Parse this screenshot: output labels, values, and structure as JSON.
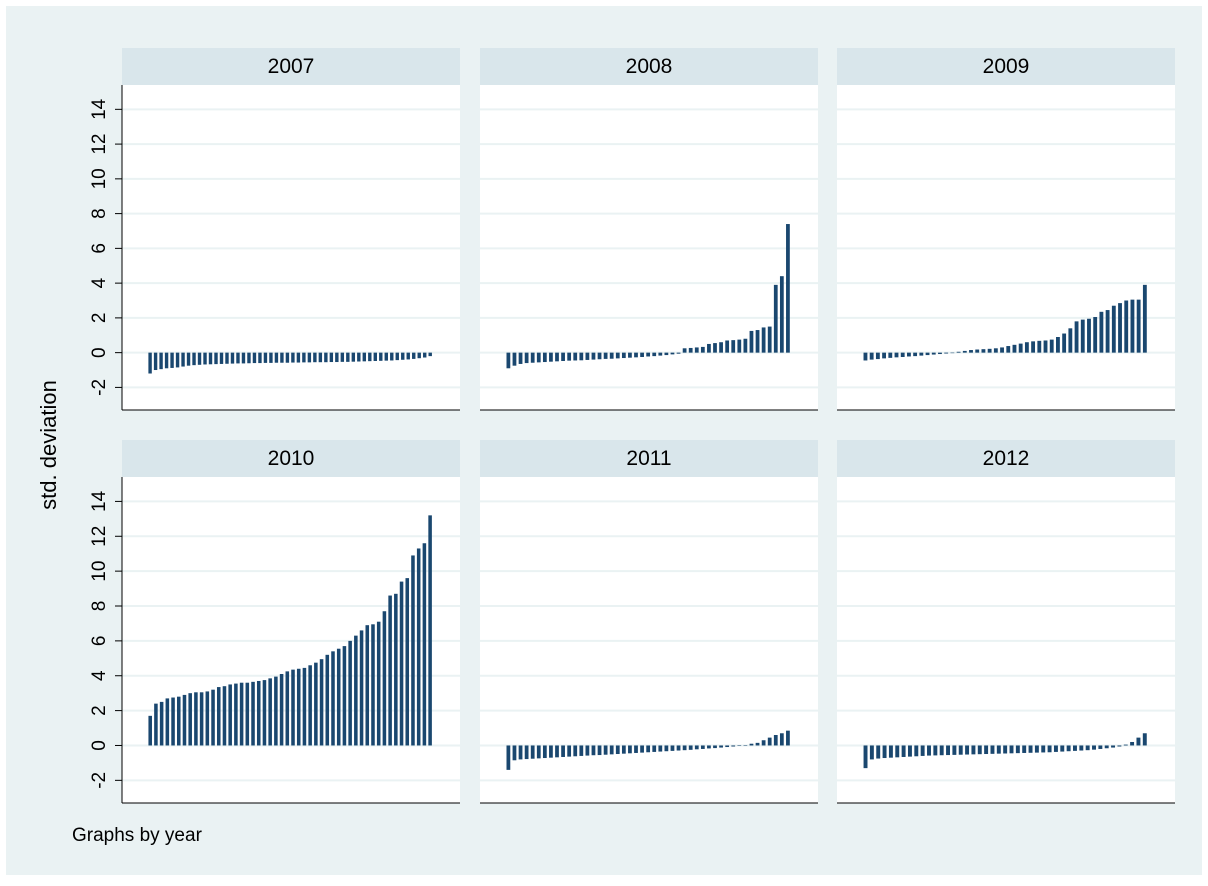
{
  "chart_data": {
    "type": "bar",
    "y_label": "std. deviation",
    "note": "Graphs by year",
    "color": "#1a476f",
    "ylim": [
      -3.3,
      15.4
    ],
    "yticks": [
      -2,
      0,
      2,
      4,
      6,
      8,
      10,
      12,
      14
    ],
    "grid": true,
    "panels": [
      {
        "title": "2007",
        "values": [
          -1.2,
          -1.0,
          -0.95,
          -0.9,
          -0.88,
          -0.85,
          -0.8,
          -0.75,
          -0.72,
          -0.7,
          -0.68,
          -0.67,
          -0.66,
          -0.65,
          -0.64,
          -0.63,
          -0.62,
          -0.62,
          -0.61,
          -0.6,
          -0.6,
          -0.59,
          -0.59,
          -0.58,
          -0.58,
          -0.58,
          -0.57,
          -0.57,
          -0.56,
          -0.56,
          -0.55,
          -0.55,
          -0.55,
          -0.54,
          -0.54,
          -0.53,
          -0.53,
          -0.52,
          -0.51,
          -0.5,
          -0.49,
          -0.48,
          -0.47,
          -0.46,
          -0.45,
          -0.43,
          -0.41,
          -0.39,
          -0.36,
          -0.32,
          -0.28,
          -0.2
        ]
      },
      {
        "title": "2008",
        "values": [
          -0.9,
          -0.75,
          -0.65,
          -0.6,
          -0.58,
          -0.56,
          -0.54,
          -0.52,
          -0.5,
          -0.48,
          -0.46,
          -0.45,
          -0.44,
          -0.42,
          -0.4,
          -0.38,
          -0.36,
          -0.35,
          -0.33,
          -0.31,
          -0.29,
          -0.27,
          -0.25,
          -0.22,
          -0.2,
          -0.17,
          -0.14,
          -0.1,
          -0.06,
          0.25,
          0.27,
          0.3,
          0.33,
          0.5,
          0.55,
          0.6,
          0.7,
          0.72,
          0.75,
          0.8,
          1.25,
          1.3,
          1.45,
          1.5,
          3.9,
          4.4,
          7.4
        ]
      },
      {
        "title": "2009",
        "values": [
          -0.45,
          -0.4,
          -0.37,
          -0.33,
          -0.3,
          -0.27,
          -0.25,
          -0.22,
          -0.2,
          -0.17,
          -0.14,
          -0.11,
          -0.08,
          -0.05,
          0,
          0.05,
          0.1,
          0.15,
          0.18,
          0.2,
          0.22,
          0.25,
          0.3,
          0.38,
          0.45,
          0.52,
          0.6,
          0.65,
          0.68,
          0.7,
          0.75,
          0.9,
          1.1,
          1.4,
          1.8,
          1.9,
          1.95,
          2.05,
          2.35,
          2.45,
          2.7,
          2.85,
          3.0,
          3.05,
          3.05,
          3.9
        ]
      },
      {
        "title": "2010",
        "values": [
          1.7,
          2.4,
          2.5,
          2.7,
          2.75,
          2.8,
          2.9,
          3.0,
          3.05,
          3.05,
          3.1,
          3.2,
          3.35,
          3.4,
          3.5,
          3.55,
          3.6,
          3.6,
          3.65,
          3.7,
          3.75,
          3.85,
          3.95,
          4.1,
          4.25,
          4.35,
          4.4,
          4.45,
          4.6,
          4.75,
          4.95,
          5.2,
          5.4,
          5.55,
          5.7,
          6.0,
          6.3,
          6.6,
          6.9,
          6.95,
          7.1,
          7.7,
          8.6,
          8.7,
          9.4,
          9.6,
          10.9,
          11.3,
          11.6,
          13.2
        ]
      },
      {
        "title": "2011",
        "values": [
          -1.4,
          -0.85,
          -0.8,
          -0.78,
          -0.76,
          -0.74,
          -0.72,
          -0.7,
          -0.68,
          -0.66,
          -0.64,
          -0.62,
          -0.6,
          -0.58,
          -0.56,
          -0.55,
          -0.53,
          -0.51,
          -0.49,
          -0.47,
          -0.45,
          -0.43,
          -0.41,
          -0.39,
          -0.37,
          -0.35,
          -0.33,
          -0.31,
          -0.29,
          -0.27,
          -0.25,
          -0.22,
          -0.2,
          -0.17,
          -0.15,
          -0.12,
          -0.09,
          -0.06,
          -0.03,
          0,
          0.1,
          0.15,
          0.3,
          0.45,
          0.6,
          0.7,
          0.85
        ]
      },
      {
        "title": "2012",
        "values": [
          -1.3,
          -0.8,
          -0.75,
          -0.72,
          -0.7,
          -0.68,
          -0.66,
          -0.64,
          -0.62,
          -0.6,
          -0.58,
          -0.57,
          -0.56,
          -0.55,
          -0.54,
          -0.53,
          -0.52,
          -0.51,
          -0.5,
          -0.49,
          -0.48,
          -0.47,
          -0.46,
          -0.45,
          -0.44,
          -0.43,
          -0.42,
          -0.41,
          -0.4,
          -0.39,
          -0.37,
          -0.35,
          -0.33,
          -0.31,
          -0.29,
          -0.27,
          -0.24,
          -0.2,
          -0.16,
          -0.12,
          -0.06,
          0.05,
          0.2,
          0.45,
          0.7
        ]
      }
    ]
  }
}
